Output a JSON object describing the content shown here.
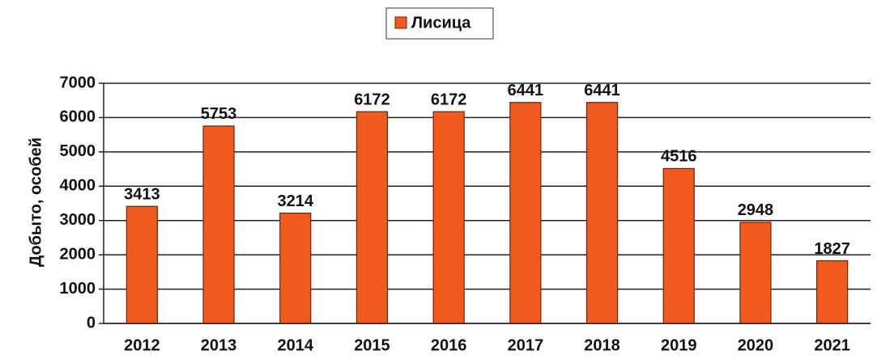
{
  "chart_data": {
    "type": "bar",
    "y_label": "Добыто, особей",
    "categories": [
      "2012",
      "2013",
      "2014",
      "2015",
      "2016",
      "2017",
      "2018",
      "2019",
      "2020",
      "2021"
    ],
    "series": [
      {
        "name": "Лисица",
        "color": "#f25a1e",
        "values": [
          3413,
          5753,
          3214,
          6172,
          6172,
          6441,
          6441,
          4516,
          2948,
          1827
        ]
      }
    ],
    "ylim": [
      0,
      7000
    ],
    "yticks": [
      0,
      1000,
      2000,
      3000,
      4000,
      5000,
      6000,
      7000
    ],
    "grid": true,
    "legend": "top",
    "data_labels": true
  }
}
